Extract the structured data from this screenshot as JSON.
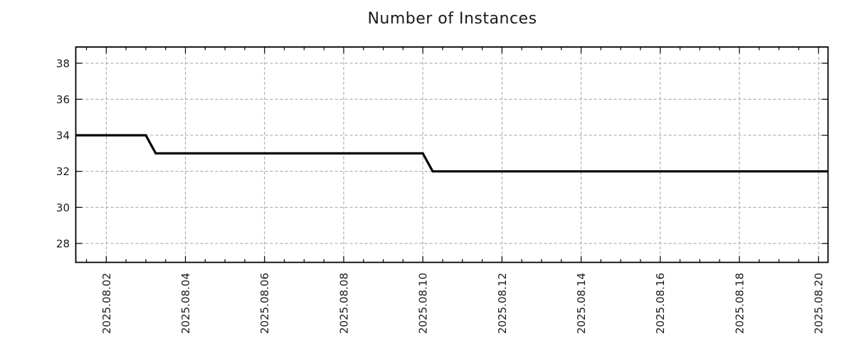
{
  "page": {
    "background": "#ffffff"
  },
  "chart_data": {
    "type": "line",
    "title": "Number of Instances",
    "subtitle": "",
    "legend": "none",
    "grid": true,
    "grid_style": "dashed",
    "line_style": "step line, no markers",
    "colors": {
      "line": "#000000",
      "grid": "#a0a0a0",
      "axis": "#000000",
      "text": "#1a1a1a",
      "background": "#ffffff"
    },
    "x_axis": {
      "label": "",
      "day_zero": "2025.08.01",
      "tick_labels": [
        "2025.08.02",
        "2025.08.04",
        "2025.08.06",
        "2025.08.08",
        "2025.08.10",
        "2025.08.12",
        "2025.08.14",
        "2025.08.16",
        "2025.08.18",
        "2025.08.20"
      ],
      "tick_positions_days": [
        1,
        3,
        5,
        7,
        9,
        11,
        13,
        15,
        17,
        19
      ],
      "minor_tick_step_days": 0.5,
      "domain_days": [
        0.23,
        19.24
      ],
      "label_rotation_deg": -90
    },
    "y_axis": {
      "label": "",
      "tick_labels": [
        "28",
        "30",
        "32",
        "34",
        "36",
        "38"
      ],
      "ticks": [
        28,
        30,
        32,
        34,
        36,
        38
      ],
      "domain": [
        26.95,
        38.9
      ]
    },
    "series": [
      {
        "name": "Number of Instances",
        "color": "#000000",
        "line_width": 3.2,
        "points": [
          {
            "date": "2025.08.01 05:30",
            "day": 0.23,
            "value": 34
          },
          {
            "date": "2025.08.03 00:00",
            "day": 2.0,
            "value": 34
          },
          {
            "date": "2025.08.03 06:00",
            "day": 2.25,
            "value": 33
          },
          {
            "date": "2025.08.10 00:00",
            "day": 9.0,
            "value": 33
          },
          {
            "date": "2025.08.10 06:00",
            "day": 9.25,
            "value": 32
          },
          {
            "date": "2025.08.20 05:45",
            "day": 19.24,
            "value": 32
          }
        ]
      }
    ],
    "steps_summary": [
      {
        "value": 34,
        "from": "2025.08.01 (left edge)",
        "to": "2025.08.03 00:00"
      },
      {
        "value": 33,
        "from": "2025.08.03 06:00",
        "to": "2025.08.10 00:00"
      },
      {
        "value": 32,
        "from": "2025.08.10 06:00",
        "to": "2025.08.20 (right edge)"
      }
    ]
  }
}
